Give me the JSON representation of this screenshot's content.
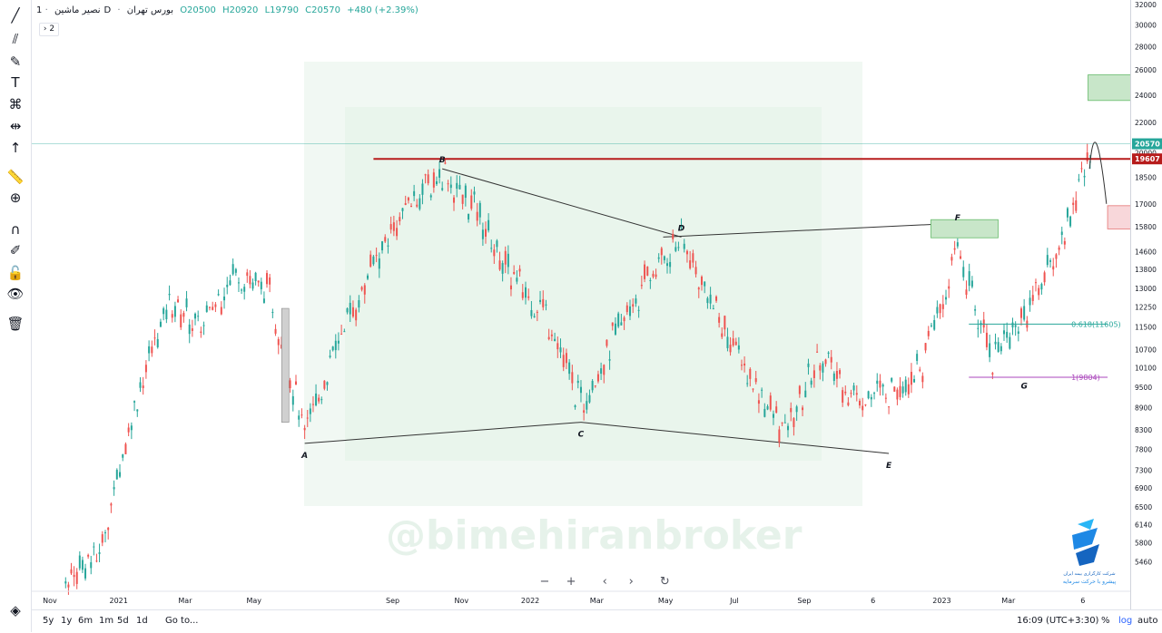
{
  "header": {
    "symbol": "نصیر ماشین",
    "interval": "1D",
    "exchange": "بورس تهران",
    "open": "O20500",
    "high": "H20920",
    "low": "L19790",
    "close": "C20570",
    "change": "+480 (+2.39%)",
    "indicator_count": "2"
  },
  "watermark": "@bimehiranbroker",
  "broker_name": "شرکت کارگزاری بیمه ایران",
  "broker_tagline": "پیشرو با حرکت سرمایه",
  "bottom_bar": {
    "ranges": [
      "5y",
      "1y",
      "6m",
      "1m",
      "5d",
      "1d"
    ],
    "goto": "Go to...",
    "time": "16:09 (UTC+3:30)",
    "percent": "%",
    "log": "log",
    "auto": "auto"
  },
  "colors": {
    "up": "#26a69a",
    "down": "#ef5350",
    "resistance": "#b71c1c",
    "last_price": "#26a69a",
    "fib_618": "#26a69a",
    "fib_1": "#ab47bc",
    "box_green": "#c8e6c9",
    "box_red": "#f8d7da"
  },
  "icons": [
    "trendline-icon",
    "pitchfork-icon",
    "brush-icon",
    "text-icon",
    "pattern-icon",
    "projection-icon",
    "cursor-arrow-icon",
    "ruler-icon",
    "zoom-icon",
    "magnet-icon",
    "lock-drawings-icon",
    "lock-icon",
    "eye-icon",
    "trash-icon",
    "layers-icon"
  ],
  "chart_data": {
    "type": "candlestick",
    "scale": "log",
    "ylim": [
      5000,
      32000
    ],
    "x_ticks": [
      "Nov",
      "2021",
      "Mar",
      "May",
      "Sep",
      "Nov",
      "2022",
      "Mar",
      "May",
      "Jul",
      "Sep",
      "6",
      "2023",
      "Mar",
      "6"
    ],
    "y_ticks": [
      32000,
      30000,
      28000,
      26000,
      24000,
      22000,
      20000,
      18500,
      17000,
      15800,
      14600,
      13800,
      13000,
      12250,
      11500,
      10700,
      10100,
      9500,
      8900,
      8300,
      7800,
      7300,
      6900,
      6500,
      6140,
      5800,
      5460
    ],
    "last_price": 20570,
    "resistance_level": 19607,
    "fib_levels": [
      {
        "label": "0.618(11605)",
        "value": 11605
      },
      {
        "label": "1(9804)",
        "value": 9804
      }
    ],
    "wave_points": [
      {
        "label": "A",
        "date": "2021-06",
        "price": 7950
      },
      {
        "label": "B",
        "date": "2021-10",
        "price": 19000
      },
      {
        "label": "C",
        "date": "2022-02",
        "price": 8500
      },
      {
        "label": "D",
        "date": "2022-05",
        "price": 15300
      },
      {
        "label": "E",
        "date": "2022-11",
        "price": 7700
      },
      {
        "label": "F",
        "date": "2023-01",
        "price": 15800
      },
      {
        "label": "G",
        "date": "2023-03",
        "price": 9900
      }
    ],
    "price_path": [
      [
        "2020-11",
        5200
      ],
      [
        "2020-12",
        5600
      ],
      [
        "2021-01",
        9000
      ],
      [
        "2021-02",
        12500
      ],
      [
        "2021-03",
        11500
      ],
      [
        "2021-04",
        13800
      ],
      [
        "2021-05",
        12800
      ],
      [
        "2021-06",
        8200
      ],
      [
        "2021-07",
        11000
      ],
      [
        "2021-08",
        14000
      ],
      [
        "2021-09",
        17000
      ],
      [
        "2021-10",
        18800
      ],
      [
        "2021-11",
        16500
      ],
      [
        "2021-12",
        13500
      ],
      [
        "2022-01",
        12000
      ],
      [
        "2022-02",
        9000
      ],
      [
        "2022-03",
        11000
      ],
      [
        "2022-04",
        13500
      ],
      [
        "2022-05",
        15200
      ],
      [
        "2022-06",
        12000
      ],
      [
        "2022-07",
        9800
      ],
      [
        "2022-08",
        8200
      ],
      [
        "2022-09",
        10500
      ],
      [
        "2022-10",
        9200
      ],
      [
        "2022-11",
        9400
      ],
      [
        "2022-12",
        10200
      ],
      [
        "2023-01",
        14600
      ],
      [
        "2023-02",
        10500
      ],
      [
        "2023-03",
        12000
      ],
      [
        "2023-04",
        14800
      ],
      [
        "2023-05",
        20570
      ]
    ]
  }
}
